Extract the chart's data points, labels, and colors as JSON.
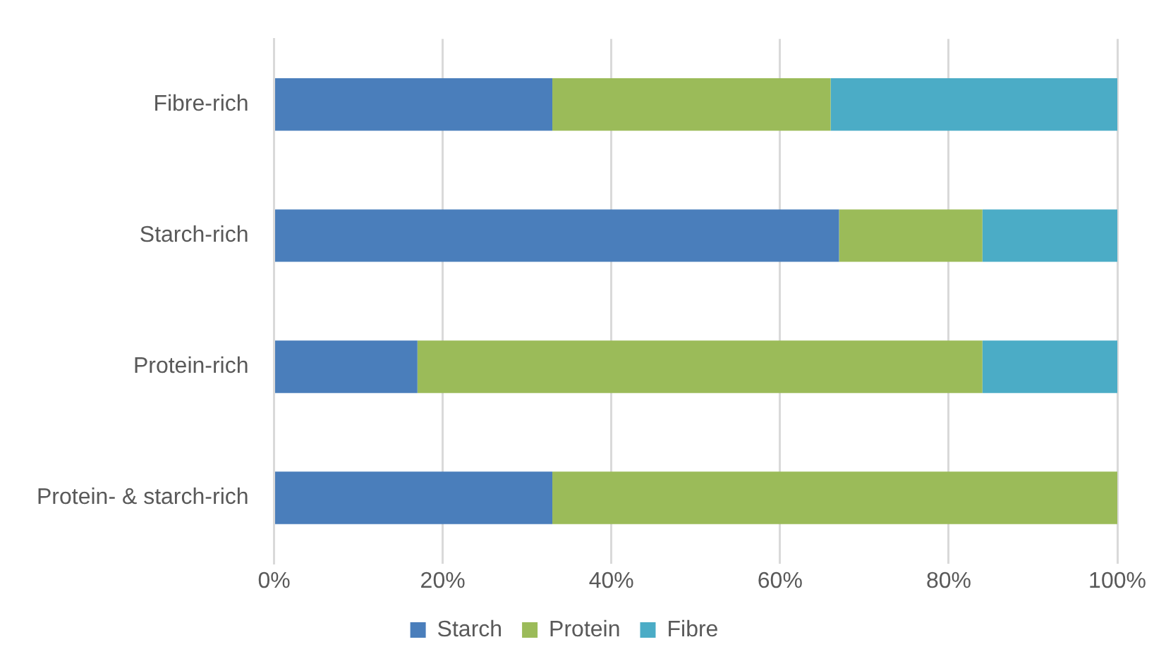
{
  "chart_data": {
    "type": "bar",
    "orientation": "horizontal",
    "stacked": true,
    "categories": [
      "Fibre-rich",
      "Starch-rich",
      "Protein-rich",
      "Protein- & starch-rich"
    ],
    "series": [
      {
        "name": "Starch",
        "color": "#4a7ebb",
        "values": [
          33,
          67,
          17,
          33
        ]
      },
      {
        "name": "Protein",
        "color": "#9bbb59",
        "values": [
          33,
          17,
          67,
          67
        ]
      },
      {
        "name": "Fibre",
        "color": "#4bacc6",
        "values": [
          34,
          16,
          16,
          0
        ]
      }
    ],
    "xlim": [
      0,
      100
    ],
    "xticks": [
      {
        "value": 0,
        "label": "0%"
      },
      {
        "value": 20,
        "label": "20%"
      },
      {
        "value": 40,
        "label": "40%"
      },
      {
        "value": 60,
        "label": "60%"
      },
      {
        "value": 80,
        "label": "80%"
      },
      {
        "value": 100,
        "label": "100%"
      }
    ],
    "grid": "x",
    "legend": "bottom"
  }
}
